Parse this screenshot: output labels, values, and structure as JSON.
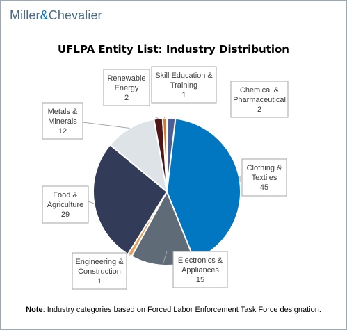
{
  "brand": {
    "name_part1": "Miller",
    "name_amp": "&",
    "name_part2": "Chevalier"
  },
  "note": {
    "prefix": "Note",
    "text": ":  Industry categories based on Forced Labor Enforcement Task Force designation."
  },
  "chart_data": {
    "type": "pie",
    "title": "UFLPA Entity List: Industry Distribution",
    "start_angle_deg": 0,
    "direction": "clockwise",
    "slices": [
      {
        "label_lines": [
          "Chemical &",
          "Pharmaceutical"
        ],
        "value": 2,
        "value_text": "2",
        "color": "#4a5f96"
      },
      {
        "label_lines": [
          "Clothing &",
          "Textiles"
        ],
        "value": 45,
        "value_text": "45",
        "color": "#0077c0"
      },
      {
        "label_lines": [
          "Electronics &",
          "Appliances"
        ],
        "value": 15,
        "value_text": "15",
        "color": "#5f6b77"
      },
      {
        "label_lines": [
          "Engineering &",
          "Construction"
        ],
        "value": 1,
        "value_text": "1",
        "color": "#e5a15a"
      },
      {
        "label_lines": [
          "Food &",
          "Agriculture"
        ],
        "value": 29,
        "value_text": "29",
        "color": "#323b58"
      },
      {
        "label_lines": [
          "Metals &",
          "Minerals"
        ],
        "value": 12,
        "value_text": "12",
        "color": "#dde3e6"
      },
      {
        "label_lines": [
          "Renewable",
          "Energy"
        ],
        "value": 2,
        "value_text": "2",
        "color": "#4e1616"
      },
      {
        "label_lines": [
          "Skill Education &",
          "Training"
        ],
        "value": 1,
        "value_text": "1",
        "color": "#d5772b"
      }
    ]
  }
}
